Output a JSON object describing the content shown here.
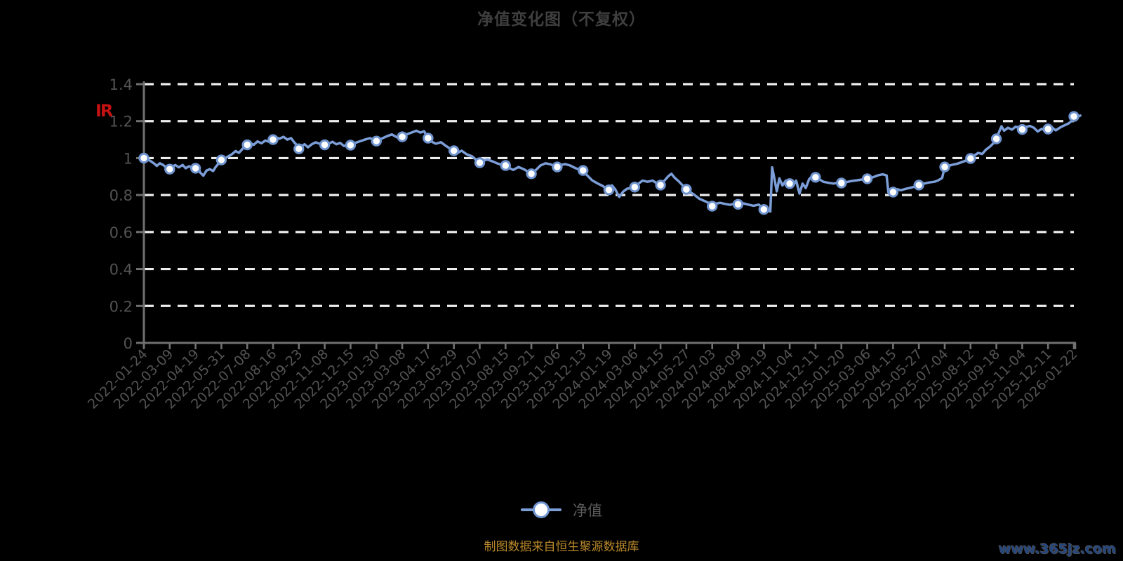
{
  "page": {
    "background": "#000000"
  },
  "title": {
    "text": "净值变化图（不复权）",
    "color": "#3f3f3f"
  },
  "red_label": {
    "text": "IR",
    "color": "#c41111"
  },
  "legend": {
    "label": "净值",
    "color": "#5a5a5a"
  },
  "footer": {
    "source_text": "制图数据来自恒生聚源数据库",
    "source_color": "#b9882a",
    "watermark": "www.365jz.com",
    "watermark_color": "#25477f"
  },
  "chart_data": {
    "type": "line",
    "title": "净值变化图（不复权）",
    "series_name": "净值",
    "grid": "horizontal-dashed-white",
    "legend_position": "bottom-center",
    "ylim": [
      0,
      1.4
    ],
    "yticks": [
      0,
      0.2,
      0.4,
      0.6,
      0.8,
      1,
      1.2,
      1.4
    ],
    "ytick_labels": [
      "0",
      "0.2",
      "0.4",
      "0.6",
      "0.8",
      "1",
      "1.2",
      "1.4"
    ],
    "x_labels": [
      "2022-01-24",
      "2022-03-09",
      "2022-04-19",
      "2022-05-31",
      "2022-07-08",
      "2022-08-16",
      "2022-09-23",
      "2022-11-08",
      "2022-12-15",
      "2023-01-30",
      "2023-03-08",
      "2023-04-17",
      "2023-05-29",
      "2023-07-07",
      "2023-08-15",
      "2023-09-21",
      "2023-11-06",
      "2023-12-13",
      "2024-01-19",
      "2024-03-06",
      "2024-04-15",
      "2024-05-27",
      "2024-07-03",
      "2024-08-09",
      "2024-09-19",
      "2024-11-04",
      "2024-12-11",
      "2025-01-20",
      "2025-03-06",
      "2025-04-15",
      "2025-05-27",
      "2025-07-04",
      "2025-08-12",
      "2025-09-18",
      "2025-11-04",
      "2025-12-11",
      "2026-01-22"
    ],
    "colors": {
      "line": "#7c9ed8",
      "marker_fill": "#ffffff",
      "marker_stroke": "#6f94cf",
      "grid": "#ededed",
      "axis": "#707070",
      "tick_label": "#535353"
    },
    "markers": [
      [
        0,
        1.0
      ],
      [
        1,
        0.94
      ],
      [
        2,
        0.945
      ],
      [
        3,
        0.99
      ],
      [
        4,
        1.072
      ],
      [
        5,
        1.1
      ],
      [
        6,
        1.05
      ],
      [
        7,
        1.072
      ],
      [
        8,
        1.07
      ],
      [
        9,
        1.092
      ],
      [
        10,
        1.115
      ],
      [
        11,
        1.108
      ],
      [
        12,
        1.04
      ],
      [
        13,
        0.975
      ],
      [
        14,
        0.96
      ],
      [
        15,
        0.915
      ],
      [
        16,
        0.952
      ],
      [
        17,
        0.933
      ],
      [
        18,
        0.828
      ],
      [
        19,
        0.843
      ],
      [
        20,
        0.854
      ],
      [
        21,
        0.831
      ],
      [
        22,
        0.74
      ],
      [
        23,
        0.75
      ],
      [
        24,
        0.722
      ],
      [
        25,
        0.862
      ],
      [
        26,
        0.896
      ],
      [
        27,
        0.865
      ],
      [
        28,
        0.888
      ],
      [
        29,
        0.816
      ],
      [
        30,
        0.854
      ],
      [
        31,
        0.952
      ],
      [
        32,
        0.998
      ],
      [
        33,
        1.104
      ],
      [
        34,
        1.155
      ],
      [
        35,
        1.157
      ],
      [
        36,
        1.225
      ]
    ],
    "points": [
      [
        0,
        1.0
      ],
      [
        0.12,
        0.992
      ],
      [
        0.25,
        0.985
      ],
      [
        0.4,
        0.97
      ],
      [
        0.5,
        0.958
      ],
      [
        0.62,
        0.972
      ],
      [
        0.75,
        0.962
      ],
      [
        0.88,
        0.948
      ],
      [
        1,
        0.94
      ],
      [
        1.1,
        0.955
      ],
      [
        1.22,
        0.962
      ],
      [
        1.35,
        0.95
      ],
      [
        1.5,
        0.963
      ],
      [
        1.62,
        0.945
      ],
      [
        1.75,
        0.956
      ],
      [
        1.88,
        0.946
      ],
      [
        2,
        0.945
      ],
      [
        2.08,
        0.956
      ],
      [
        2.18,
        0.922
      ],
      [
        2.3,
        0.905
      ],
      [
        2.42,
        0.932
      ],
      [
        2.55,
        0.94
      ],
      [
        2.68,
        0.93
      ],
      [
        2.78,
        0.952
      ],
      [
        2.9,
        0.972
      ],
      [
        3,
        0.99
      ],
      [
        3.12,
        0.996
      ],
      [
        3.25,
        1.008
      ],
      [
        3.4,
        1.02
      ],
      [
        3.55,
        1.038
      ],
      [
        3.68,
        1.028
      ],
      [
        3.82,
        1.05
      ],
      [
        4,
        1.072
      ],
      [
        4.12,
        1.082
      ],
      [
        4.25,
        1.072
      ],
      [
        4.4,
        1.09
      ],
      [
        4.55,
        1.08
      ],
      [
        4.7,
        1.095
      ],
      [
        4.85,
        1.088
      ],
      [
        5,
        1.1
      ],
      [
        5.12,
        1.112
      ],
      [
        5.25,
        1.105
      ],
      [
        5.4,
        1.115
      ],
      [
        5.55,
        1.1
      ],
      [
        5.7,
        1.108
      ],
      [
        5.82,
        1.085
      ],
      [
        5.92,
        1.07
      ],
      [
        6,
        1.05
      ],
      [
        6.1,
        1.065
      ],
      [
        6.22,
        1.075
      ],
      [
        6.35,
        1.058
      ],
      [
        6.5,
        1.075
      ],
      [
        6.65,
        1.085
      ],
      [
        6.8,
        1.078
      ],
      [
        7,
        1.072
      ],
      [
        7.15,
        1.078
      ],
      [
        7.3,
        1.088
      ],
      [
        7.45,
        1.075
      ],
      [
        7.6,
        1.082
      ],
      [
        7.75,
        1.065
      ],
      [
        7.9,
        1.075
      ],
      [
        8,
        1.07
      ],
      [
        8.18,
        1.082
      ],
      [
        8.35,
        1.09
      ],
      [
        8.55,
        1.1
      ],
      [
        8.75,
        1.108
      ],
      [
        8.9,
        1.1
      ],
      [
        9,
        1.092
      ],
      [
        9.2,
        1.105
      ],
      [
        9.4,
        1.118
      ],
      [
        9.6,
        1.128
      ],
      [
        9.8,
        1.112
      ],
      [
        10,
        1.115
      ],
      [
        10.2,
        1.13
      ],
      [
        10.4,
        1.14
      ],
      [
        10.55,
        1.148
      ],
      [
        10.7,
        1.138
      ],
      [
        10.85,
        1.145
      ],
      [
        11,
        1.108
      ],
      [
        11.15,
        1.088
      ],
      [
        11.3,
        1.078
      ],
      [
        11.5,
        1.086
      ],
      [
        11.7,
        1.065
      ],
      [
        11.85,
        1.052
      ],
      [
        12,
        1.04
      ],
      [
        12.15,
        1.028
      ],
      [
        12.3,
        1.04
      ],
      [
        12.5,
        1.02
      ],
      [
        12.7,
        1.01
      ],
      [
        12.85,
        0.992
      ],
      [
        13,
        0.975
      ],
      [
        13.15,
        0.986
      ],
      [
        13.3,
        0.992
      ],
      [
        13.5,
        0.982
      ],
      [
        13.7,
        0.97
      ],
      [
        13.85,
        0.964
      ],
      [
        14,
        0.96
      ],
      [
        14.15,
        0.946
      ],
      [
        14.3,
        0.936
      ],
      [
        14.5,
        0.952
      ],
      [
        14.7,
        0.94
      ],
      [
        14.85,
        0.928
      ],
      [
        15,
        0.915
      ],
      [
        15.15,
        0.932
      ],
      [
        15.35,
        0.96
      ],
      [
        15.55,
        0.972
      ],
      [
        15.75,
        0.966
      ],
      [
        15.9,
        0.956
      ],
      [
        16,
        0.952
      ],
      [
        16.15,
        0.962
      ],
      [
        16.3,
        0.968
      ],
      [
        16.5,
        0.96
      ],
      [
        16.7,
        0.946
      ],
      [
        16.85,
        0.938
      ],
      [
        17,
        0.933
      ],
      [
        17.15,
        0.908
      ],
      [
        17.35,
        0.88
      ],
      [
        17.55,
        0.864
      ],
      [
        17.75,
        0.85
      ],
      [
        17.9,
        0.836
      ],
      [
        18,
        0.828
      ],
      [
        18.12,
        0.852
      ],
      [
        18.25,
        0.83
      ],
      [
        18.4,
        0.79
      ],
      [
        18.55,
        0.818
      ],
      [
        18.7,
        0.834
      ],
      [
        18.85,
        0.838
      ],
      [
        19,
        0.843
      ],
      [
        19.15,
        0.862
      ],
      [
        19.3,
        0.878
      ],
      [
        19.5,
        0.872
      ],
      [
        19.7,
        0.878
      ],
      [
        19.85,
        0.864
      ],
      [
        20,
        0.854
      ],
      [
        20.15,
        0.878
      ],
      [
        20.3,
        0.902
      ],
      [
        20.42,
        0.915
      ],
      [
        20.55,
        0.893
      ],
      [
        20.7,
        0.875
      ],
      [
        20.85,
        0.853
      ],
      [
        21,
        0.831
      ],
      [
        21.15,
        0.816
      ],
      [
        21.3,
        0.802
      ],
      [
        21.5,
        0.78
      ],
      [
        21.7,
        0.768
      ],
      [
        21.85,
        0.758
      ],
      [
        22,
        0.74
      ],
      [
        22.15,
        0.753
      ],
      [
        22.3,
        0.758
      ],
      [
        22.5,
        0.752
      ],
      [
        22.7,
        0.747
      ],
      [
        22.85,
        0.753
      ],
      [
        23,
        0.75
      ],
      [
        23.2,
        0.755
      ],
      [
        23.4,
        0.748
      ],
      [
        23.6,
        0.742
      ],
      [
        23.8,
        0.748
      ],
      [
        23.95,
        0.73
      ],
      [
        24.1,
        0.718
      ],
      [
        24.25,
        0.711
      ],
      [
        24.32,
        0.95
      ],
      [
        24.42,
        0.88
      ],
      [
        24.5,
        0.82
      ],
      [
        24.6,
        0.89
      ],
      [
        24.72,
        0.852
      ],
      [
        24.85,
        0.878
      ],
      [
        25,
        0.862
      ],
      [
        25.12,
        0.848
      ],
      [
        25.25,
        0.878
      ],
      [
        25.38,
        0.808
      ],
      [
        25.5,
        0.862
      ],
      [
        25.62,
        0.838
      ],
      [
        25.75,
        0.885
      ],
      [
        25.88,
        0.905
      ],
      [
        26,
        0.896
      ],
      [
        26.15,
        0.885
      ],
      [
        26.3,
        0.872
      ],
      [
        26.5,
        0.866
      ],
      [
        26.7,
        0.862
      ],
      [
        26.85,
        0.866
      ],
      [
        27,
        0.865
      ],
      [
        27.2,
        0.87
      ],
      [
        27.4,
        0.876
      ],
      [
        27.6,
        0.88
      ],
      [
        27.8,
        0.884
      ],
      [
        28,
        0.888
      ],
      [
        28.2,
        0.895
      ],
      [
        28.4,
        0.906
      ],
      [
        28.6,
        0.912
      ],
      [
        28.75,
        0.906
      ],
      [
        28.82,
        0.815
      ],
      [
        29,
        0.816
      ],
      [
        29.15,
        0.832
      ],
      [
        29.3,
        0.826
      ],
      [
        29.5,
        0.834
      ],
      [
        29.7,
        0.84
      ],
      [
        29.85,
        0.846
      ],
      [
        30,
        0.854
      ],
      [
        30.2,
        0.862
      ],
      [
        30.4,
        0.868
      ],
      [
        30.6,
        0.872
      ],
      [
        30.75,
        0.88
      ],
      [
        30.9,
        0.892
      ],
      [
        31,
        0.952
      ],
      [
        31.15,
        0.958
      ],
      [
        31.3,
        0.964
      ],
      [
        31.5,
        0.97
      ],
      [
        31.7,
        0.98
      ],
      [
        31.85,
        0.988
      ],
      [
        32,
        0.998
      ],
      [
        32.15,
        1.014
      ],
      [
        32.3,
        1.028
      ],
      [
        32.45,
        1.022
      ],
      [
        32.6,
        1.046
      ],
      [
        32.75,
        1.062
      ],
      [
        32.9,
        1.082
      ],
      [
        33,
        1.104
      ],
      [
        33.1,
        1.14
      ],
      [
        33.2,
        1.172
      ],
      [
        33.3,
        1.148
      ],
      [
        33.45,
        1.164
      ],
      [
        33.6,
        1.154
      ],
      [
        33.75,
        1.17
      ],
      [
        33.9,
        1.163
      ],
      [
        34,
        1.155
      ],
      [
        34.15,
        1.168
      ],
      [
        34.3,
        1.174
      ],
      [
        34.45,
        1.164
      ],
      [
        34.6,
        1.144
      ],
      [
        34.75,
        1.158
      ],
      [
        34.9,
        1.152
      ],
      [
        35,
        1.157
      ],
      [
        35.15,
        1.166
      ],
      [
        35.3,
        1.15
      ],
      [
        35.5,
        1.168
      ],
      [
        35.65,
        1.178
      ],
      [
        35.8,
        1.188
      ],
      [
        35.95,
        1.205
      ],
      [
        36.1,
        1.22
      ],
      [
        36.25,
        1.23
      ]
    ]
  }
}
